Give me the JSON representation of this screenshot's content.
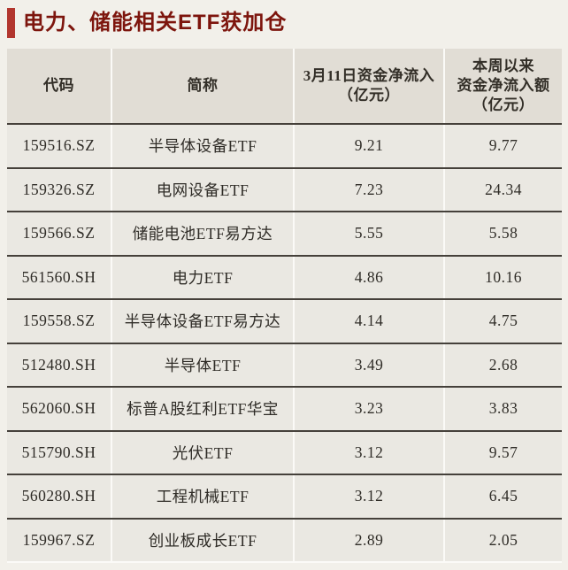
{
  "page": {
    "background": "#f2f0ea"
  },
  "title": {
    "text": "电力、储能相关ETF获加仓",
    "color": "#7d150d",
    "accent_bar_color": "#b2362e"
  },
  "table": {
    "headers": [
      {
        "label": "代码"
      },
      {
        "label": "简称"
      },
      {
        "label": "3月11日资金净流入\n（亿元）"
      },
      {
        "label": "本周以来\n资金净流入额\n（亿元）"
      }
    ],
    "rows": [
      {
        "code": "159516.SZ",
        "name": "半导体设备ETF",
        "day_inflow": "9.21",
        "week_inflow": "9.77"
      },
      {
        "code": "159326.SZ",
        "name": "电网设备ETF",
        "day_inflow": "7.23",
        "week_inflow": "24.34"
      },
      {
        "code": "159566.SZ",
        "name": "储能电池ETF易方达",
        "day_inflow": "5.55",
        "week_inflow": "5.58"
      },
      {
        "code": "561560.SH",
        "name": "电力ETF",
        "day_inflow": "4.86",
        "week_inflow": "10.16"
      },
      {
        "code": "159558.SZ",
        "name": "半导体设备ETF易方达",
        "day_inflow": "4.14",
        "week_inflow": "4.75"
      },
      {
        "code": "512480.SH",
        "name": "半导体ETF",
        "day_inflow": "3.49",
        "week_inflow": "2.68"
      },
      {
        "code": "562060.SH",
        "name": "标普A股红利ETF华宝",
        "day_inflow": "3.23",
        "week_inflow": "3.83"
      },
      {
        "code": "515790.SH",
        "name": "光伏ETF",
        "day_inflow": "3.12",
        "week_inflow": "9.57"
      },
      {
        "code": "560280.SH",
        "name": "工程机械ETF",
        "day_inflow": "3.12",
        "week_inflow": "6.45"
      },
      {
        "code": "159967.SZ",
        "name": "创业板成长ETF",
        "day_inflow": "2.89",
        "week_inflow": "2.05"
      }
    ]
  },
  "chart_data": {
    "type": "table",
    "title": "电力、储能相关ETF获加仓",
    "columns": [
      "代码",
      "简称",
      "3月11日资金净流入（亿元）",
      "本周以来资金净流入额（亿元）"
    ],
    "rows": [
      [
        "159516.SZ",
        "半导体设备ETF",
        9.21,
        9.77
      ],
      [
        "159326.SZ",
        "电网设备ETF",
        7.23,
        24.34
      ],
      [
        "159566.SZ",
        "储能电池ETF易方达",
        5.55,
        5.58
      ],
      [
        "561560.SH",
        "电力ETF",
        4.86,
        10.16
      ],
      [
        "159558.SZ",
        "半导体设备ETF易方达",
        4.14,
        4.75
      ],
      [
        "512480.SH",
        "半导体ETF",
        3.49,
        2.68
      ],
      [
        "562060.SH",
        "标普A股红利ETF华宝",
        3.23,
        3.83
      ],
      [
        "515790.SH",
        "光伏ETF",
        3.12,
        9.57
      ],
      [
        "560280.SH",
        "工程机械ETF",
        3.12,
        6.45
      ],
      [
        "159967.SZ",
        "创业板成长ETF",
        2.89,
        2.05
      ]
    ]
  }
}
